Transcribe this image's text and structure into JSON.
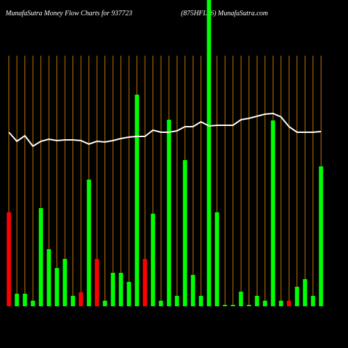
{
  "chart_data": {
    "type": "bar",
    "title": "MunafaSutra  Money Flow  Charts for 937723",
    "subtitle": "(875HFL26) MunafaSutra.com",
    "grid": true,
    "grid_color": "#c87800",
    "ylim": [
      0,
      440
    ],
    "categories": [
      null,
      null,
      null,
      null,
      null,
      null,
      null,
      null,
      null,
      null,
      null,
      null,
      null,
      null,
      null,
      null,
      null,
      null,
      null,
      null,
      null,
      null,
      null,
      null,
      null,
      null,
      null,
      null,
      null,
      null,
      null,
      null,
      null,
      null,
      null,
      null,
      null,
      null,
      null,
      null
    ],
    "values": [
      135,
      18,
      18,
      8,
      141,
      82,
      55,
      68,
      15,
      20,
      182,
      68,
      8,
      48,
      48,
      35,
      304,
      68,
      133,
      8,
      268,
      15,
      210,
      45,
      15,
      440,
      135,
      2,
      2,
      21,
      2,
      15,
      8,
      267,
      8,
      8,
      28,
      39,
      15,
      201
    ],
    "colors": [
      "#ff0000",
      "#00ff00",
      "#00ff00",
      "#00ff00",
      "#00ff00",
      "#00ff00",
      "#00ff00",
      "#00ff00",
      "#00ff00",
      "#ff0000",
      "#00ff00",
      "#ff0000",
      "#00ff00",
      "#00ff00",
      "#00ff00",
      "#00ff00",
      "#00ff00",
      "#ff0000",
      "#00ff00",
      "#00ff00",
      "#00ff00",
      "#00ff00",
      "#00ff00",
      "#00ff00",
      "#00ff00",
      "#00ff00",
      "#00ff00",
      "#00ff00",
      "#00ff00",
      "#00ff00",
      "#00ff00",
      "#00ff00",
      "#00ff00",
      "#00ff00",
      "#00ff00",
      "#ff0000",
      "#00ff00",
      "#00ff00",
      "#00ff00",
      "#00ff00"
    ],
    "line_color": "#ffffff",
    "line_values": [
      250,
      237,
      245,
      230,
      237,
      240,
      238,
      239,
      239,
      238,
      233,
      237,
      236,
      238,
      241,
      243,
      244,
      244,
      253,
      250,
      250,
      252,
      258,
      258,
      265,
      259,
      260,
      260,
      260,
      268,
      270,
      273,
      276,
      277,
      272,
      258,
      250,
      250,
      250,
      251
    ]
  }
}
